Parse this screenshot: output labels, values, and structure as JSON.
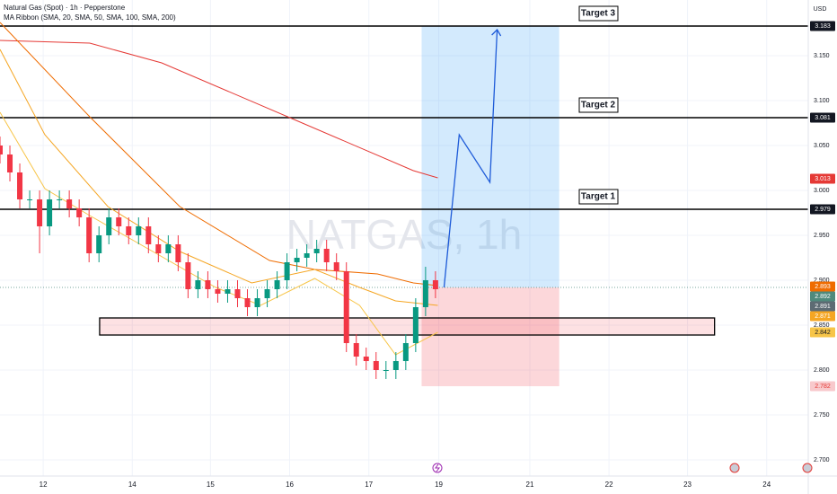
{
  "chart_data": {
    "type": "candlestick",
    "title": "Natural Gas (Spot) · 1h · Pepperstone",
    "indicator": "MA Ribbon (SMA, 20, SMA, 50, SMA, 100, SMA, 200)",
    "currency": "USD",
    "watermark": "NATGAS, 1h",
    "grid": true,
    "ylim": [
      2.682,
      3.212
    ],
    "yticks": [
      {
        "value": 3.15,
        "label": "3.150"
      },
      {
        "value": 3.1,
        "label": "3.100"
      },
      {
        "value": 3.05,
        "label": "3.050"
      },
      {
        "value": 3.0,
        "label": "3.000"
      },
      {
        "value": 2.95,
        "label": "2.950"
      },
      {
        "value": 2.9,
        "label": "2.900"
      },
      {
        "value": 2.85,
        "label": "2.850"
      },
      {
        "value": 2.8,
        "label": "2.800"
      },
      {
        "value": 2.75,
        "label": "2.750"
      },
      {
        "value": 2.7,
        "label": "2.700"
      }
    ],
    "xlim": [
      0,
      245
    ],
    "xticks": [
      {
        "value": 13.1,
        "label": "12"
      },
      {
        "value": 40.1,
        "label": "14"
      },
      {
        "value": 63.8,
        "label": "15"
      },
      {
        "value": 87.8,
        "label": "16"
      },
      {
        "value": 111.8,
        "label": "17"
      },
      {
        "value": 133,
        "label": "19"
      },
      {
        "value": 160.6,
        "label": "21"
      },
      {
        "value": 184.6,
        "label": "22"
      },
      {
        "value": 208.4,
        "label": "23"
      },
      {
        "value": 232.4,
        "label": "24"
      }
    ],
    "up_color": "#089981",
    "down_color": "#f23645",
    "candles": {
      "x": [
        0,
        3,
        6,
        9,
        12,
        15,
        18,
        21,
        24,
        27,
        30,
        33,
        36,
        39,
        42,
        45,
        48,
        51,
        54,
        57,
        60,
        63,
        66,
        69,
        72,
        75,
        78,
        81,
        84,
        87,
        90,
        93,
        96,
        99,
        102,
        105,
        108,
        111,
        114,
        117,
        120,
        123,
        126,
        129,
        132
      ],
      "open": [
        3.05,
        3.04,
        3.02,
        2.99,
        2.99,
        2.96,
        2.99,
        2.99,
        2.98,
        2.97,
        2.93,
        2.95,
        2.97,
        2.96,
        2.95,
        2.96,
        2.94,
        2.93,
        2.94,
        2.92,
        2.89,
        2.9,
        2.89,
        2.885,
        2.89,
        2.88,
        2.87,
        2.88,
        2.89,
        2.9,
        2.92,
        2.925,
        2.93,
        2.935,
        2.92,
        2.91,
        2.83,
        2.815,
        2.81,
        2.8,
        2.8,
        2.81,
        2.83,
        2.87,
        2.9
      ],
      "high": [
        3.06,
        3.05,
        3.03,
        3.0,
        3.0,
        3.0,
        3.0,
        3.0,
        2.99,
        2.98,
        2.96,
        2.98,
        2.98,
        2.97,
        2.97,
        2.97,
        2.95,
        2.95,
        2.95,
        2.93,
        2.91,
        2.91,
        2.9,
        2.9,
        2.9,
        2.89,
        2.89,
        2.9,
        2.91,
        2.93,
        2.935,
        2.94,
        2.945,
        2.945,
        2.93,
        2.92,
        2.84,
        2.825,
        2.82,
        2.81,
        2.82,
        2.84,
        2.88,
        2.915,
        2.91
      ],
      "low": [
        3.03,
        3.01,
        2.98,
        2.98,
        2.93,
        2.95,
        2.98,
        2.97,
        2.96,
        2.92,
        2.92,
        2.94,
        2.95,
        2.94,
        2.94,
        2.93,
        2.92,
        2.92,
        2.91,
        2.88,
        2.88,
        2.88,
        2.875,
        2.875,
        2.87,
        2.86,
        2.86,
        2.87,
        2.88,
        2.89,
        2.91,
        2.915,
        2.92,
        2.91,
        2.9,
        2.82,
        2.805,
        2.8,
        2.79,
        2.79,
        2.79,
        2.8,
        2.82,
        2.86,
        2.88
      ],
      "close": [
        3.04,
        3.02,
        2.99,
        2.99,
        2.96,
        2.99,
        2.99,
        2.98,
        2.97,
        2.93,
        2.95,
        2.97,
        2.96,
        2.95,
        2.96,
        2.94,
        2.93,
        2.94,
        2.92,
        2.89,
        2.9,
        2.89,
        2.885,
        2.89,
        2.88,
        2.87,
        2.88,
        2.89,
        2.9,
        2.92,
        2.925,
        2.93,
        2.935,
        2.92,
        2.91,
        2.83,
        2.815,
        2.81,
        2.8,
        2.8,
        2.81,
        2.83,
        2.87,
        2.9,
        2.89
      ]
    },
    "series": [
      {
        "name": "SMA 200",
        "color": "#e53935",
        "x": [
          0,
          27.2,
          49,
          87.2,
          125.3,
          132.7
        ],
        "values": [
          3.167,
          3.164,
          3.142,
          3.082,
          3.022,
          3.014
        ]
      },
      {
        "name": "SMA 100",
        "color": "#ef6c00",
        "x": [
          0,
          27.2,
          54.5,
          81.7,
          95.4,
          114.4,
          125.3,
          132.7
        ],
        "values": [
          3.187,
          3.082,
          2.982,
          2.922,
          2.912,
          2.907,
          2.897,
          2.894
        ]
      },
      {
        "name": "SMA 50",
        "color": "#f5a623",
        "x": [
          0,
          13.6,
          32.7,
          54.5,
          76.3,
          95.4,
          109,
          119.9,
          132.7
        ],
        "values": [
          3.157,
          3.062,
          2.982,
          2.932,
          2.897,
          2.912,
          2.892,
          2.877,
          2.872
        ]
      },
      {
        "name": "SMA 20",
        "color": "#f7c548",
        "x": [
          0,
          13.6,
          27.2,
          46.3,
          65.4,
          79,
          95.4,
          109,
          119.9,
          132.7
        ],
        "values": [
          3.087,
          3.002,
          2.972,
          2.932,
          2.892,
          2.872,
          2.902,
          2.872,
          2.817,
          2.842
        ]
      }
    ],
    "levels": [
      {
        "label": "Target 3",
        "value": 3.183
      },
      {
        "label": "Target 2",
        "value": 3.081
      },
      {
        "label": "Target 1",
        "value": 2.979
      }
    ],
    "zone": {
      "low": 2.839,
      "high": 2.858,
      "x": [
        30.2,
        216.6
      ]
    },
    "position": {
      "x": [
        127.8,
        169.5
      ],
      "entry": 2.892,
      "target": 3.183,
      "stop": 2.782
    },
    "projection": {
      "color": "#1e5bd8",
      "x": [
        134.6,
        139.2,
        148.5,
        150.7
      ],
      "values": [
        2.892,
        3.062,
        3.009,
        3.179
      ]
    },
    "price_labels": [
      {
        "value": 3.183,
        "color": "#131722"
      },
      {
        "value": 3.081,
        "color": "#131722"
      },
      {
        "value": 3.013,
        "color": "#e53935"
      },
      {
        "value": 2.979,
        "color": "#131722"
      },
      {
        "value": 2.893,
        "color": "#ef6c00"
      },
      {
        "value": 2.892,
        "color": "#4f8a7c"
      },
      {
        "value": 2.891,
        "color": "#5d6b73"
      },
      {
        "value": 2.871,
        "color": "#f5a623"
      },
      {
        "value": 2.842,
        "color": "#f7c548"
      },
      {
        "value": 2.782,
        "color": "#f8c9cc"
      }
    ]
  }
}
